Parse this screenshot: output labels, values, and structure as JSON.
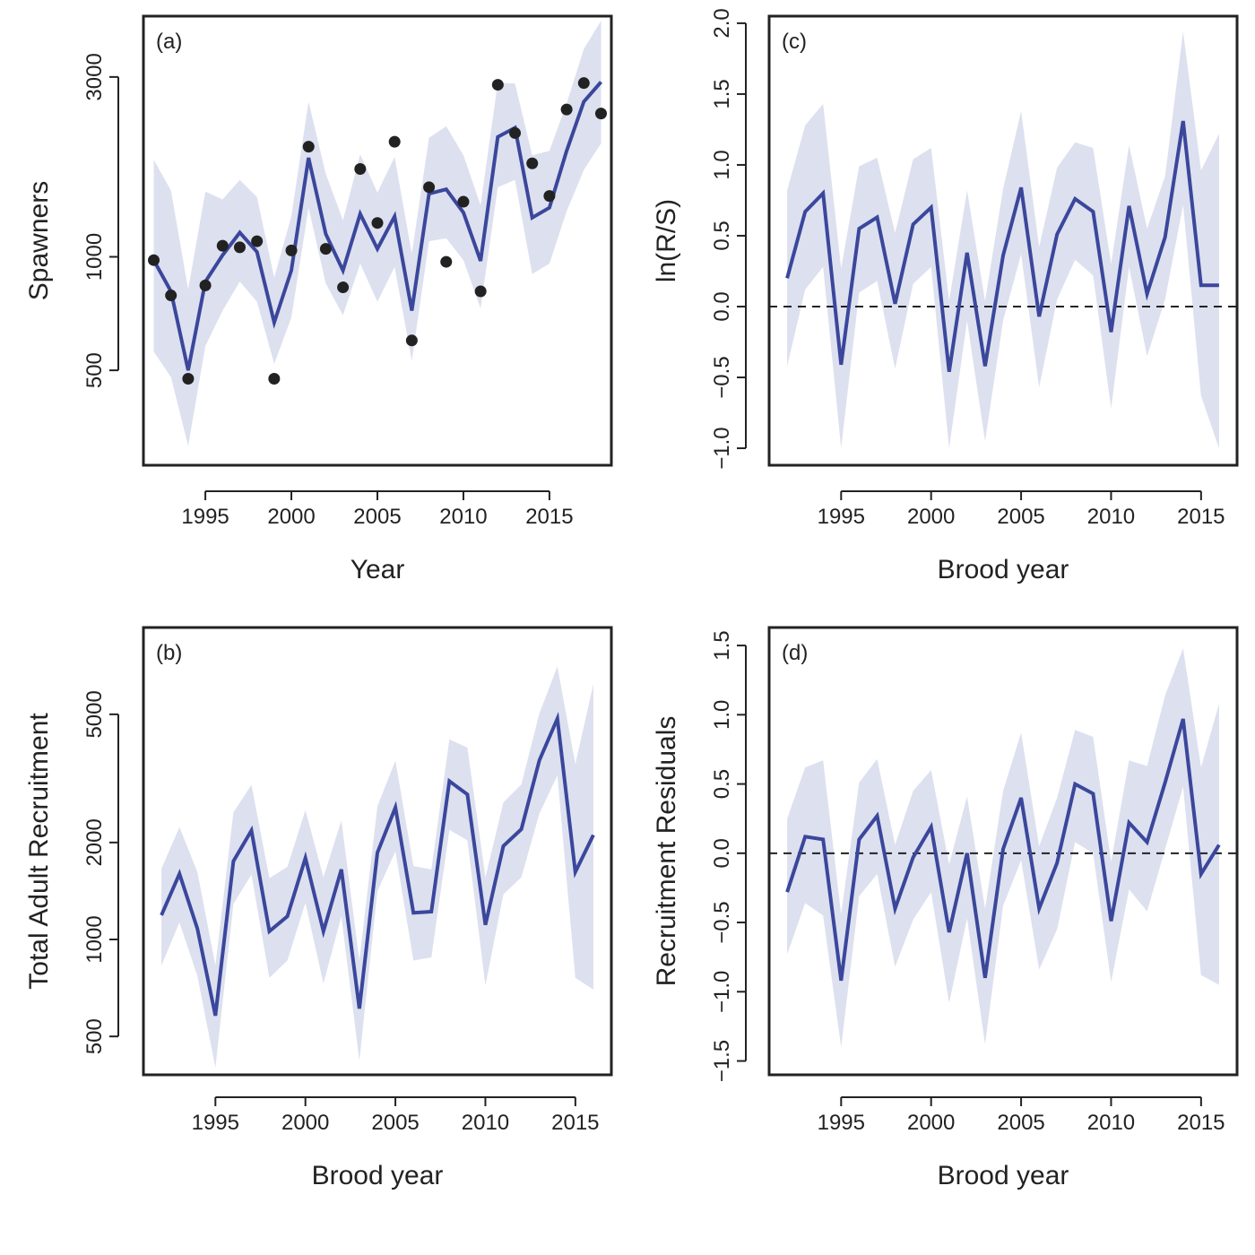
{
  "colors": {
    "line": "#3a479b",
    "band": "#dde0ef",
    "points": "#222222"
  },
  "chart_data": [
    {
      "id": "a",
      "type": "line",
      "tag": "(a)",
      "xlabel": "Year",
      "ylabel": "Spawners",
      "yscale": "log",
      "xlim": [
        1991.4,
        2018.6
      ],
      "ylim": [
        280,
        4350
      ],
      "xticks": [
        1995,
        2000,
        2005,
        2010,
        2015
      ],
      "yticks": [
        500,
        1000,
        3000
      ],
      "x": [
        1992,
        1993,
        1994,
        1995,
        1996,
        1997,
        1998,
        1999,
        2000,
        2001,
        2002,
        2003,
        2004,
        2005,
        2006,
        2007,
        2008,
        2009,
        2010,
        2011,
        2012,
        2013,
        2014,
        2015,
        2016,
        2017,
        2018
      ],
      "series": [
        {
          "median": [
            980,
            810,
            500,
            860,
            1010,
            1160,
            1030,
            670,
            920,
            1830,
            1150,
            920,
            1300,
            1050,
            1280,
            720,
            1470,
            1510,
            1310,
            975,
            2080,
            2200,
            1270,
            1350,
            1910,
            2580,
            2910
          ],
          "lower": [
            560,
            480,
            315,
            580,
            720,
            860,
            760,
            520,
            690,
            1350,
            850,
            700,
            960,
            760,
            940,
            530,
            1100,
            1120,
            980,
            730,
            1530,
            1600,
            900,
            960,
            1320,
            1700,
            2000
          ],
          "upper": [
            1810,
            1500,
            820,
            1490,
            1420,
            1600,
            1440,
            880,
            1280,
            2580,
            1660,
            1250,
            1870,
            1480,
            1840,
            1020,
            2070,
            2220,
            1860,
            1370,
            2900,
            2880,
            1860,
            1910,
            2550,
            3560,
            4230
          ]
        }
      ],
      "points": [
        980,
        790,
        475,
        840,
        1070,
        1060,
        1100,
        475,
        1040,
        1960,
        1050,
        830,
        1710,
        1230,
        2020,
        600,
        1530,
        970,
        1400,
        810,
        2860,
        2130,
        1770,
        1450,
        2460,
        2890,
        2400
      ]
    },
    {
      "id": "b",
      "type": "line",
      "tag": "(b)",
      "xlabel": "Brood year",
      "ylabel": "Total Adult Recruitment",
      "yscale": "log",
      "xlim": [
        1991.0,
        2017.0
      ],
      "ylim": [
        380,
        9300
      ],
      "xticks": [
        1995,
        2000,
        2005,
        2010,
        2015
      ],
      "yticks": [
        500,
        1000,
        2000,
        5000
      ],
      "x": [
        1992,
        1993,
        1994,
        1995,
        1996,
        1997,
        1998,
        1999,
        2000,
        2001,
        2002,
        2003,
        2004,
        2005,
        2006,
        2007,
        2008,
        2009,
        2010,
        2011,
        2012,
        2013,
        2014,
        2015,
        2016
      ],
      "series": [
        {
          "median": [
            1190,
            1600,
            1080,
            580,
            1750,
            2180,
            1060,
            1180,
            1790,
            1060,
            1650,
            610,
            1860,
            2570,
            1210,
            1220,
            3100,
            2820,
            1110,
            1950,
            2200,
            3600,
            4850,
            1620,
            2110
          ],
          "lower": [
            830,
            1130,
            770,
            400,
            1290,
            1590,
            760,
            860,
            1300,
            730,
            1180,
            420,
            1410,
            1880,
            860,
            880,
            2190,
            2030,
            720,
            1380,
            1560,
            2460,
            3230,
            760,
            700
          ],
          "upper": [
            1660,
            2230,
            1620,
            830,
            2480,
            3020,
            1550,
            1680,
            2520,
            1560,
            2340,
            860,
            2590,
            3590,
            1690,
            1650,
            4180,
            3940,
            1560,
            2660,
            3030,
            5030,
            7040,
            3500,
            6200
          ]
        }
      ]
    },
    {
      "id": "c",
      "type": "line",
      "tag": "(c)",
      "xlabel": "Brood year",
      "ylabel": "ln(R/S)",
      "yscale": "linear",
      "xlim": [
        1991.0,
        2017.0
      ],
      "ylim": [
        -1.12,
        2.05
      ],
      "xticks": [
        1995,
        2000,
        2005,
        2010,
        2015
      ],
      "yticks": [
        -1.0,
        -0.5,
        0.0,
        0.5,
        1.0,
        1.5,
        2.0
      ],
      "ytick_labels": [
        "−1.0",
        "−0.5",
        "0.0",
        "0.5",
        "1.0",
        "1.5",
        "2.0"
      ],
      "hline": 0,
      "x": [
        1992,
        1993,
        1994,
        1995,
        1996,
        1997,
        1998,
        1999,
        2000,
        2001,
        2002,
        2003,
        2004,
        2005,
        2006,
        2007,
        2008,
        2009,
        2010,
        2011,
        2012,
        2013,
        2014,
        2015,
        2016
      ],
      "series": [
        {
          "median": [
            0.2,
            0.67,
            0.8,
            -0.41,
            0.55,
            0.63,
            0.02,
            0.58,
            0.7,
            -0.46,
            0.38,
            -0.42,
            0.36,
            0.84,
            -0.07,
            0.51,
            0.76,
            0.67,
            -0.18,
            0.71,
            0.09,
            0.49,
            1.31,
            0.15,
            0.15
          ],
          "lower": [
            -0.42,
            0.12,
            0.28,
            -1.0,
            0.1,
            0.18,
            -0.44,
            0.16,
            0.28,
            -1.0,
            -0.1,
            -0.95,
            -0.1,
            0.37,
            -0.57,
            0.05,
            0.33,
            0.22,
            -0.72,
            0.28,
            -0.35,
            0.05,
            0.72,
            -0.63,
            -1.0
          ],
          "upper": [
            0.82,
            1.28,
            1.43,
            0.27,
            0.99,
            1.05,
            0.52,
            1.04,
            1.12,
            0.04,
            0.82,
            0.04,
            0.83,
            1.38,
            0.42,
            0.98,
            1.16,
            1.12,
            0.3,
            1.14,
            0.55,
            0.92,
            1.94,
            0.96,
            1.22
          ]
        }
      ]
    },
    {
      "id": "d",
      "type": "line",
      "tag": "(d)",
      "xlabel": "Brood year",
      "ylabel": "Recruitment Residuals",
      "yscale": "linear",
      "xlim": [
        1991.0,
        2017.0
      ],
      "ylim": [
        -1.6,
        1.63
      ],
      "xticks": [
        1995,
        2000,
        2005,
        2010,
        2015
      ],
      "yticks": [
        -1.5,
        -1.0,
        -0.5,
        0.0,
        0.5,
        1.0,
        1.5
      ],
      "ytick_labels": [
        "−1.5",
        "−1.0",
        "−0.5",
        "0.0",
        "0.5",
        "1.0",
        "1.5"
      ],
      "hline": 0,
      "x": [
        1992,
        1993,
        1994,
        1995,
        1996,
        1997,
        1998,
        1999,
        2000,
        2001,
        2002,
        2003,
        2004,
        2005,
        2006,
        2007,
        2008,
        2009,
        2010,
        2011,
        2012,
        2013,
        2014,
        2015,
        2016
      ],
      "series": [
        {
          "median": [
            -0.28,
            0.12,
            0.1,
            -0.92,
            0.1,
            0.27,
            -0.4,
            -0.03,
            0.19,
            -0.57,
            0.0,
            -0.9,
            0.03,
            0.4,
            -0.4,
            -0.07,
            0.5,
            0.43,
            -0.49,
            0.22,
            0.08,
            0.51,
            0.97,
            -0.15,
            0.06
          ],
          "lower": [
            -0.73,
            -0.36,
            -0.45,
            -1.4,
            -0.31,
            -0.15,
            -0.82,
            -0.48,
            -0.28,
            -1.08,
            -0.47,
            -1.38,
            -0.38,
            -0.05,
            -0.84,
            -0.55,
            0.08,
            0.0,
            -0.93,
            -0.26,
            -0.42,
            0.03,
            0.48,
            -0.88,
            -0.95
          ],
          "upper": [
            0.25,
            0.62,
            0.67,
            -0.44,
            0.51,
            0.68,
            0.06,
            0.45,
            0.6,
            -0.08,
            0.41,
            -0.4,
            0.45,
            0.87,
            0.05,
            0.4,
            0.89,
            0.84,
            -0.06,
            0.67,
            0.63,
            1.14,
            1.48,
            0.62,
            1.08
          ]
        }
      ]
    }
  ]
}
